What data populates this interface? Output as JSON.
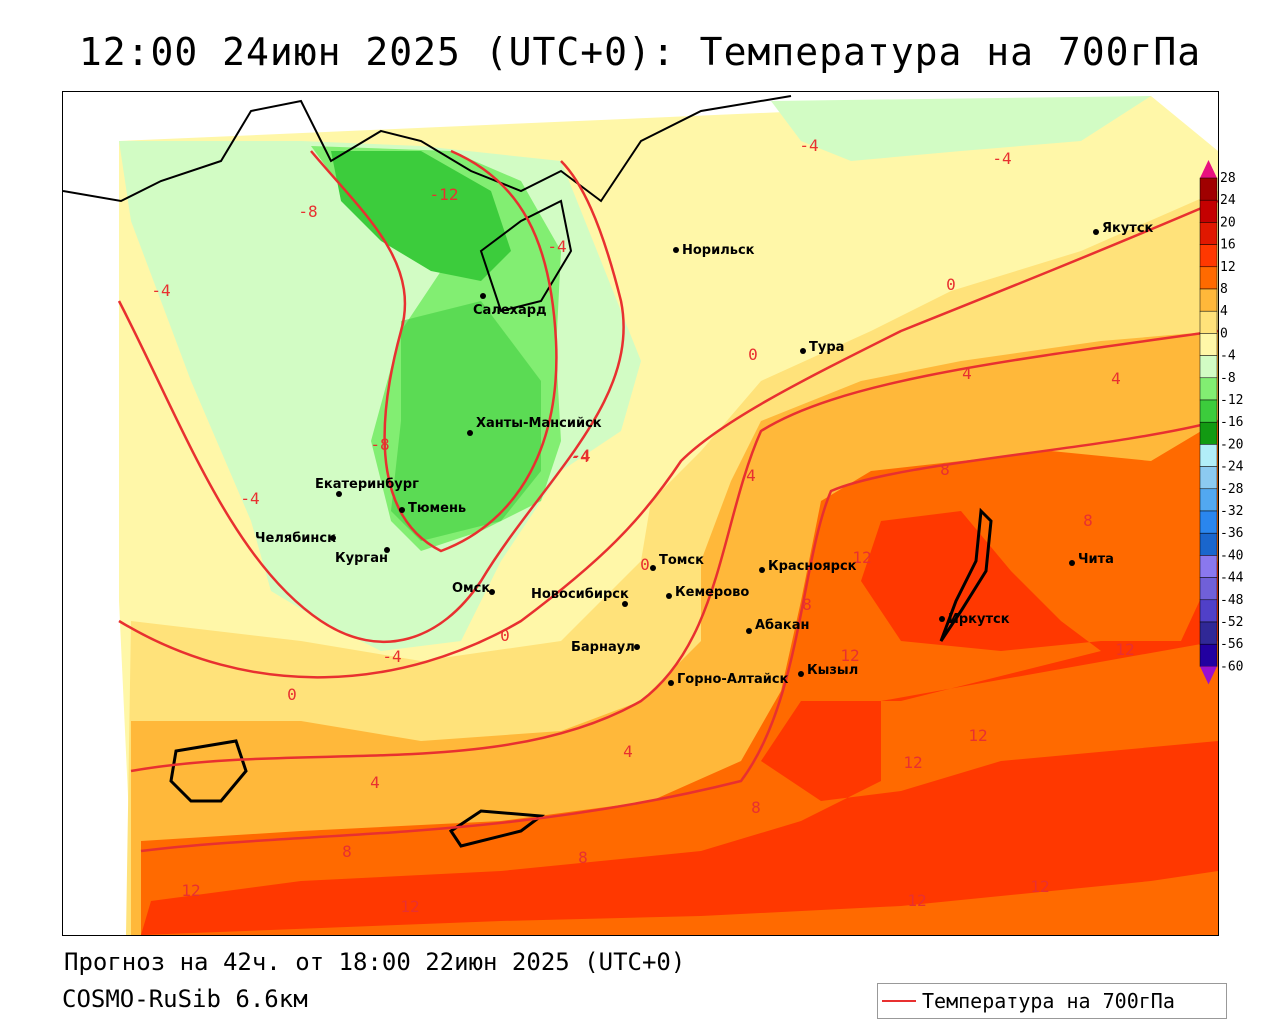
{
  "title": "12:00 24июн 2025 (UTC+0): Температура на 700гПа",
  "footer": {
    "forecast": "Прогноз на 42ч. от 18:00 22июн 2025 (UTC+0)",
    "model": "COSMO-RuSib 6.6км"
  },
  "legend": {
    "label": "Температура на 700гПа",
    "line_color": "#e83030"
  },
  "colorbar": {
    "ticks": [
      "28",
      "24",
      "20",
      "16",
      "12",
      "8",
      "4",
      "0",
      "-4",
      "-8",
      "-12",
      "-16",
      "-20",
      "-24",
      "-28",
      "-32",
      "-36",
      "-40",
      "-44",
      "-48",
      "-52",
      "-56",
      "-60"
    ],
    "colors": [
      "#a00000",
      "#c40000",
      "#e01800",
      "#ff3800",
      "#ff6a00",
      "#ffb83a",
      "#ffe27a",
      "#fff7a8",
      "#d2fcc4",
      "#82ee72",
      "#3ccc3c",
      "#129a12",
      "#b2eef8",
      "#8ccaf0",
      "#52a8f0",
      "#2a86ee",
      "#1a66cc",
      "#8a78ee",
      "#7060d8",
      "#5040c8",
      "#302896",
      "#2200a0"
    ],
    "over_color": "#e8107f",
    "under_color": "#9a10d0"
  },
  "cities": [
    "Норильск",
    "Якутск",
    "Салехард",
    "Тура",
    "Ханты-Мансийск",
    "Екатеринбург",
    "Тюмень",
    "Челябинск",
    "Курган",
    "Омск",
    "Томск",
    "Новосибирск",
    "Кемерово",
    "Красноярск",
    "Барнаул",
    "Абакан",
    "Иркутск",
    "Чита",
    "Кызыл",
    "Горно-Алтайск"
  ],
  "contour_labels": [
    "-4",
    "-4",
    "-8",
    "-12",
    "-4",
    "-4",
    "0",
    "0",
    "-4",
    "-8",
    "-4",
    "-4",
    "0",
    "4",
    "4",
    "4",
    "8",
    "8",
    "12",
    "12",
    "8",
    "12",
    "12",
    "12",
    "-4",
    "0",
    "4",
    "4",
    "8",
    "12",
    "8",
    "12",
    "12",
    "12",
    "0",
    "8"
  ]
}
